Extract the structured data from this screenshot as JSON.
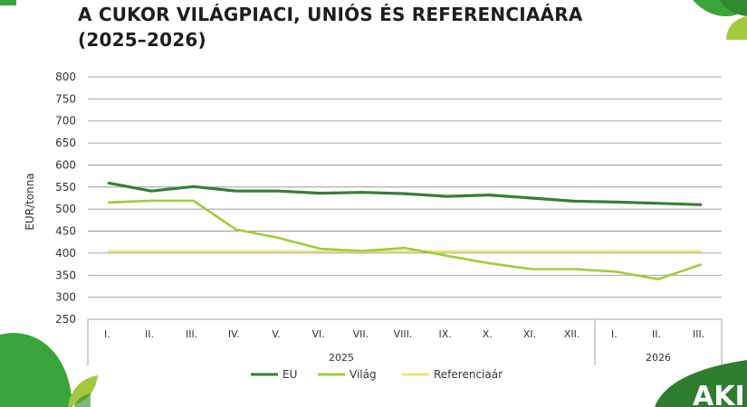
{
  "title": {
    "line1": "A CUKOR VILÁGPIACI, UNIÓS ÉS REFERENCIAÁRA",
    "line2": "(2025–2026)"
  },
  "logo": {
    "text": "AKI"
  },
  "chart_data": {
    "type": "line",
    "title": "A CUKOR VILÁGPIACI, UNIÓS ÉS REFERENCIAÁRA (2025–2026)",
    "ylabel": "EUR/tonna",
    "xlabel": "",
    "ylim": [
      250,
      800
    ],
    "yticks": [
      250,
      300,
      350,
      400,
      450,
      500,
      550,
      600,
      650,
      700,
      750,
      800
    ],
    "grid": true,
    "legend_position": "bottom",
    "categories": [
      "I.",
      "II.",
      "III.",
      "IV.",
      "V.",
      "VI.",
      "VII.",
      "VIII.",
      "IX.",
      "X.",
      "XI.",
      "XII.",
      "I.",
      "II.",
      "III."
    ],
    "groups": [
      {
        "label": "2025",
        "count": 12
      },
      {
        "label": "2026",
        "count": 3
      }
    ],
    "series": [
      {
        "name": "EU",
        "color": "#3a7d35",
        "values": [
          559,
          541,
          551,
          541,
          541,
          536,
          538,
          535,
          529,
          532,
          525,
          518,
          516,
          513,
          510
        ]
      },
      {
        "name": "Világ",
        "color": "#a5c93c",
        "values": [
          515,
          519,
          519,
          454,
          435,
          410,
          405,
          412,
          394,
          377,
          364,
          364,
          358,
          341,
          374
        ]
      },
      {
        "name": "Referenciaár",
        "color": "#e6e67a",
        "values": [
          404,
          404,
          404,
          404,
          404,
          404,
          404,
          404,
          404,
          404,
          404,
          404,
          404,
          404,
          404
        ]
      }
    ]
  }
}
